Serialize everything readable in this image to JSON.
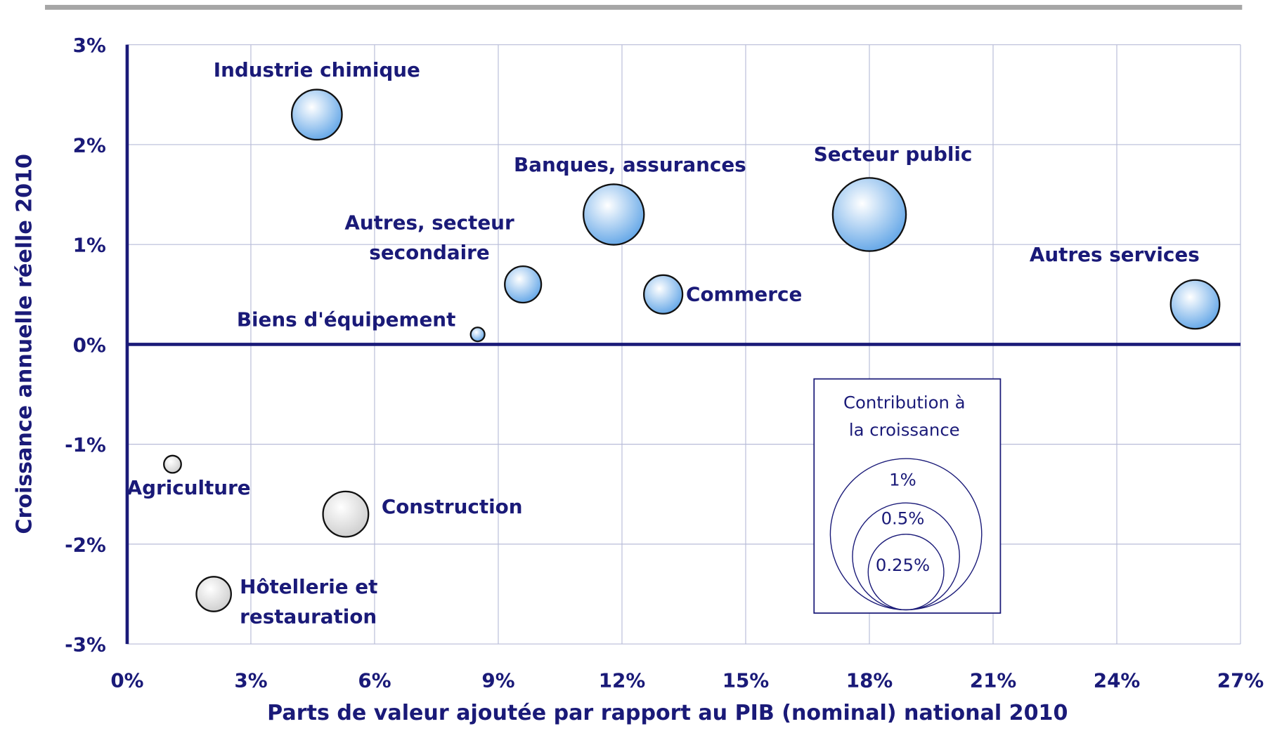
{
  "chart_data": {
    "type": "bubble",
    "xlabel": "Parts de valeur ajoutée par rapport au PIB (nominal) national 2010",
    "ylabel": "Croissance annuelle réelle 2010",
    "xlim": [
      0,
      27
    ],
    "ylim": [
      -3,
      3
    ],
    "xticks": [
      {
        "value": 0,
        "label": "0%"
      },
      {
        "value": 3,
        "label": "3%"
      },
      {
        "value": 6,
        "label": "6%"
      },
      {
        "value": 9,
        "label": "9%"
      },
      {
        "value": 12,
        "label": "12%"
      },
      {
        "value": 15,
        "label": "15%"
      },
      {
        "value": 18,
        "label": "18%"
      },
      {
        "value": 21,
        "label": "21%"
      },
      {
        "value": 24,
        "label": "24%"
      },
      {
        "value": 27,
        "label": "27%"
      }
    ],
    "yticks": [
      {
        "value": -3,
        "label": "-3%"
      },
      {
        "value": -2,
        "label": "-2%"
      },
      {
        "value": -1,
        "label": "-1%"
      },
      {
        "value": 0,
        "label": "0%"
      },
      {
        "value": 1,
        "label": "1%"
      },
      {
        "value": 2,
        "label": "2%"
      },
      {
        "value": 3,
        "label": "3%"
      }
    ],
    "grid": true,
    "labels": [
      [
        "Industrie chimique"
      ],
      [
        "Banques, assurances"
      ],
      [
        "Secteur public"
      ],
      [
        "Autres, secteur",
        "secondaire"
      ],
      [
        "Commerce"
      ],
      [
        "Autres services"
      ],
      [
        "Biens d'équipement"
      ],
      [
        "Agriculture"
      ],
      [
        "Construction"
      ],
      [
        "Hôtellerie et",
        "restauration"
      ]
    ],
    "x": [
      4.6,
      11.8,
      18,
      9.6,
      13,
      25.9,
      8.5,
      1.1,
      5.3,
      2.1
    ],
    "values": [
      2.3,
      1.3,
      1.3,
      0.6,
      0.5,
      0.4,
      0.1,
      -1.2,
      -1.7,
      -2.5
    ],
    "sizes": [
      0.11,
      0.16,
      0.234,
      0.058,
      0.065,
      0.104,
      0.0085,
      0.013,
      0.09,
      0.0525
    ],
    "colors": [
      "#6aaae8",
      "#6aaae8",
      "#6aaae8",
      "#6aaae8",
      "#6aaae8",
      "#6aaae8",
      "#6aaae8",
      "#d0d0d0",
      "#d0d0d0",
      "#d0d0d0"
    ],
    "size_legend": {
      "title": [
        "Contribution à",
        "la croissance"
      ],
      "entries": [
        {
          "value": 1,
          "label": "1%"
        },
        {
          "value": 0.5,
          "label": "0.5%"
        },
        {
          "value": 0.25,
          "label": "0.25%"
        }
      ]
    }
  }
}
